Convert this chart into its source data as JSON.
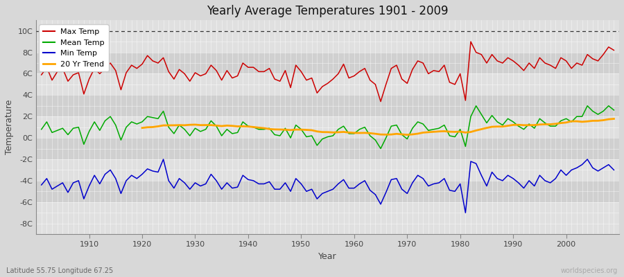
{
  "title": "Yearly Average Temperatures 1901 - 2009",
  "xlabel": "Year",
  "ylabel": "Temperature",
  "lat_lon_label": "Latitude 55.75 Longitude 67.25",
  "credit_label": "worldspecies.org",
  "year_start": 1901,
  "year_end": 2009,
  "yticks": [
    -8,
    -6,
    -4,
    -2,
    0,
    2,
    4,
    6,
    8,
    10
  ],
  "ytick_labels": [
    "-8C",
    "-6C",
    "-4C",
    "-2C",
    "0C",
    "2C",
    "4C",
    "6C",
    "8C",
    "10C"
  ],
  "ylim": [
    -9,
    11
  ],
  "background_color": "#d8d8d8",
  "plot_bg_light": "#e0e0e0",
  "plot_bg_dark": "#d0d0d0",
  "grid_color": "#ffffff",
  "max_color": "#cc0000",
  "mean_color": "#00aa00",
  "min_color": "#0000cc",
  "trend_color": "#ffa500",
  "dashed_line_y": 10,
  "legend_labels": [
    "Max Temp",
    "Mean Temp",
    "Min Temp",
    "20 Yr Trend"
  ],
  "max_temps": [
    5.9,
    6.6,
    5.4,
    6.2,
    6.5,
    5.3,
    5.9,
    6.1,
    4.1,
    5.5,
    6.5,
    6.0,
    6.5,
    7.0,
    6.3,
    4.5,
    6.1,
    6.8,
    6.5,
    6.9,
    7.7,
    7.2,
    7.0,
    7.5,
    6.2,
    5.5,
    6.4,
    6.0,
    5.3,
    6.1,
    5.8,
    6.0,
    6.8,
    6.3,
    5.4,
    6.3,
    5.6,
    5.8,
    7.0,
    6.6,
    6.6,
    6.2,
    6.2,
    6.5,
    5.5,
    5.3,
    6.3,
    4.7,
    6.8,
    6.2,
    5.4,
    5.6,
    4.2,
    4.8,
    5.1,
    5.5,
    6.0,
    6.9,
    5.6,
    5.8,
    6.2,
    6.5,
    5.4,
    5.0,
    3.4,
    5.0,
    6.5,
    6.8,
    5.5,
    5.1,
    6.4,
    7.2,
    7.0,
    6.0,
    6.3,
    6.2,
    6.8,
    5.2,
    5.0,
    6.0,
    3.5,
    9.0,
    8.0,
    7.8,
    7.0,
    7.8,
    7.2,
    7.0,
    7.5,
    7.2,
    6.8,
    6.3,
    7.0,
    6.5,
    7.5,
    7.0,
    6.8,
    6.5,
    7.5,
    7.2,
    6.5,
    7.0,
    6.8,
    7.8,
    7.4,
    7.2,
    7.8,
    8.5,
    8.2
  ],
  "mean_temps": [
    0.8,
    1.5,
    0.5,
    0.7,
    0.9,
    0.3,
    0.9,
    1.0,
    -0.6,
    0.6,
    1.5,
    0.7,
    1.6,
    2.0,
    1.2,
    -0.2,
    1.0,
    1.5,
    1.3,
    1.5,
    2.0,
    1.9,
    1.8,
    2.5,
    1.0,
    0.4,
    1.2,
    0.8,
    0.2,
    0.9,
    0.6,
    0.8,
    1.6,
    1.1,
    0.2,
    0.8,
    0.4,
    0.5,
    1.5,
    1.1,
    1.0,
    0.8,
    0.8,
    0.9,
    0.3,
    0.2,
    0.9,
    0.0,
    1.2,
    0.8,
    0.1,
    0.2,
    -0.7,
    -0.1,
    0.1,
    0.2,
    0.8,
    1.1,
    0.4,
    0.4,
    0.8,
    1.0,
    0.2,
    -0.2,
    -1.0,
    0.0,
    1.1,
    1.2,
    0.3,
    -0.1,
    0.9,
    1.5,
    1.3,
    0.7,
    0.8,
    0.9,
    1.2,
    0.2,
    0.1,
    0.8,
    -0.8,
    2.0,
    3.0,
    2.2,
    1.4,
    2.1,
    1.5,
    1.2,
    1.8,
    1.5,
    1.1,
    0.8,
    1.3,
    0.9,
    1.8,
    1.4,
    1.1,
    1.1,
    1.6,
    1.8,
    1.5,
    2.0,
    2.0,
    3.0,
    2.5,
    2.2,
    2.5,
    3.0,
    2.6
  ],
  "min_temps": [
    -4.4,
    -3.8,
    -4.8,
    -4.5,
    -4.2,
    -5.1,
    -4.2,
    -4.0,
    -5.7,
    -4.5,
    -3.5,
    -4.3,
    -3.4,
    -3.0,
    -3.8,
    -5.2,
    -4.0,
    -3.5,
    -3.8,
    -3.4,
    -2.9,
    -3.1,
    -3.2,
    -2.0,
    -4.0,
    -4.7,
    -3.8,
    -4.2,
    -4.8,
    -4.2,
    -4.5,
    -4.3,
    -3.4,
    -4.0,
    -4.8,
    -4.2,
    -4.7,
    -4.6,
    -3.5,
    -3.9,
    -4.0,
    -4.3,
    -4.3,
    -4.1,
    -4.8,
    -4.8,
    -4.2,
    -5.0,
    -3.8,
    -4.3,
    -5.0,
    -4.8,
    -5.7,
    -5.2,
    -5.0,
    -4.8,
    -4.3,
    -3.9,
    -4.7,
    -4.7,
    -4.3,
    -4.0,
    -4.9,
    -5.3,
    -6.2,
    -5.1,
    -3.9,
    -3.8,
    -4.8,
    -5.2,
    -4.2,
    -3.5,
    -3.8,
    -4.5,
    -4.3,
    -4.2,
    -3.8,
    -4.9,
    -5.0,
    -4.3,
    -7.0,
    -2.2,
    -2.4,
    -3.5,
    -4.5,
    -3.2,
    -3.8,
    -4.0,
    -3.5,
    -3.8,
    -4.2,
    -4.7,
    -4.0,
    -4.5,
    -3.5,
    -4.0,
    -4.2,
    -3.8,
    -3.0,
    -3.5,
    -3.0,
    -2.8,
    -2.5,
    -2.0,
    -2.8,
    -3.1,
    -2.8,
    -2.5,
    -3.0
  ]
}
